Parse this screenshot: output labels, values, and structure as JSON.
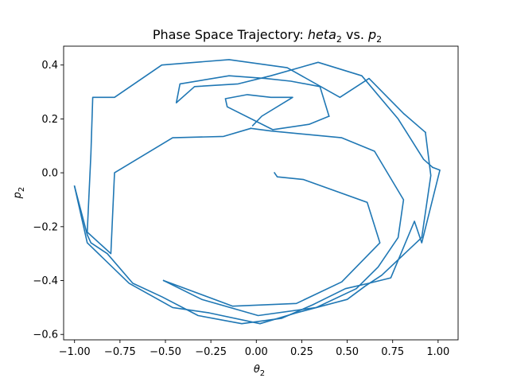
{
  "chart_data": {
    "type": "line",
    "title_prefix": "Phase Space Trajectory: ",
    "title_var": "heta",
    "title_var_sub": "2",
    "title_mid": " vs. ",
    "title_var2": "p",
    "title_var2_sub": "2",
    "xlabel": "θ",
    "xlabel_sub": "2",
    "ylabel": "p",
    "ylabel_sub": "2",
    "xlim": [
      -1.06,
      1.11
    ],
    "ylim": [
      -0.62,
      0.47
    ],
    "x_ticks": [
      -1.0,
      -0.75,
      -0.5,
      -0.25,
      0.0,
      0.25,
      0.5,
      0.75,
      1.0
    ],
    "x_tick_labels": [
      "−1.00",
      "−0.75",
      "−0.50",
      "−0.25",
      "0.00",
      "0.25",
      "0.50",
      "0.75",
      "1.00"
    ],
    "y_ticks": [
      -0.6,
      -0.4,
      -0.2,
      0.0,
      0.2,
      0.4
    ],
    "y_tick_labels": [
      "−0.6",
      "−0.4",
      "−0.2",
      "0.0",
      "0.2",
      "0.4"
    ],
    "grid": false,
    "line_color": "#1f77b4",
    "series": [
      {
        "x": [
          0.1,
          0.115,
          0.26,
          0.61,
          0.68,
          0.47,
          0.22,
          -0.13,
          -0.43,
          -0.51
        ],
        "y": [
          0.0,
          -0.015,
          -0.025,
          -0.11,
          -0.26,
          -0.405,
          -0.485,
          -0.495,
          -0.42,
          -0.4
        ],
        "seg": 1
      },
      {
        "x": [
          -0.51,
          -0.3,
          0.01,
          0.33,
          0.55,
          0.67,
          0.78,
          0.81,
          0.65,
          0.47,
          0.08,
          -0.03
        ],
        "y": [
          -0.4,
          -0.47,
          -0.53,
          -0.5,
          -0.43,
          -0.35,
          -0.24,
          -0.1,
          0.08,
          0.13,
          0.155,
          0.165
        ],
        "seg": 2
      },
      {
        "x": [
          -0.03,
          -0.18,
          -0.46,
          -0.78,
          -0.8,
          -0.93,
          -0.91,
          -0.9,
          -0.78,
          -0.52,
          -0.15,
          0.17,
          0.46,
          0.62,
          0.81,
          0.93
        ],
        "y": [
          0.165,
          0.135,
          0.13,
          0.0,
          -0.3,
          -0.22,
          0.07,
          0.28,
          0.28,
          0.4,
          0.42,
          0.39,
          0.28,
          0.35,
          0.22,
          0.15
        ],
        "seg": 3
      },
      {
        "x": [
          0.93,
          0.96,
          0.91,
          0.69,
          0.6,
          0.5,
          0.22,
          0.02,
          -0.26,
          -0.46,
          -0.7,
          -0.93,
          -1.0
        ],
        "y": [
          0.15,
          -0.01,
          -0.24,
          -0.38,
          -0.42,
          -0.47,
          -0.52,
          -0.56,
          -0.52,
          -0.5,
          -0.41,
          -0.26,
          -0.05
        ],
        "seg": 4
      },
      {
        "x": [
          -1.0,
          -0.93,
          -0.91,
          -0.82,
          -0.68,
          -0.52,
          -0.32,
          -0.08,
          0.14,
          0.31,
          0.49,
          0.62,
          0.74,
          0.87,
          0.91,
          1.01,
          0.97
        ],
        "y": [
          -0.05,
          -0.23,
          -0.26,
          -0.3,
          -0.41,
          -0.46,
          -0.53,
          -0.56,
          -0.54,
          -0.49,
          -0.43,
          -0.41,
          -0.39,
          -0.18,
          -0.26,
          0.01,
          0.02
        ],
        "seg": 5
      },
      {
        "x": [
          0.97,
          0.92,
          0.78,
          0.58,
          0.34,
          0.08,
          -0.1,
          -0.34,
          -0.44,
          -0.42,
          -0.15,
          0.05,
          0.19,
          0.35,
          0.4
        ],
        "y": [
          0.02,
          0.05,
          0.2,
          0.36,
          0.41,
          0.36,
          0.33,
          0.32,
          0.26,
          0.33,
          0.36,
          0.35,
          0.34,
          0.32,
          0.21
        ],
        "seg": 6
      },
      {
        "x": [
          0.4,
          0.29,
          0.09,
          -0.16,
          -0.17,
          -0.05,
          0.08,
          0.2,
          0.03,
          -0.02
        ],
        "y": [
          0.21,
          0.18,
          0.16,
          0.245,
          0.275,
          0.29,
          0.28,
          0.28,
          0.21,
          0.175
        ],
        "seg": 7
      }
    ]
  }
}
